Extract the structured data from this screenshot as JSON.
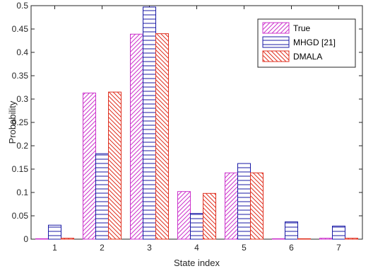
{
  "chart_data": {
    "type": "bar",
    "xlabel": "State index",
    "ylabel": "Probability",
    "categories": [
      "1",
      "2",
      "3",
      "4",
      "5",
      "6",
      "7"
    ],
    "ylim": [
      0,
      0.5
    ],
    "yticks": [
      "0",
      "0.05",
      "0.1",
      "0.15",
      "0.2",
      "0.25",
      "0.3",
      "0.35",
      "0.4",
      "0.45",
      "0.5"
    ],
    "ytick_values": [
      0,
      0.05,
      0.1,
      0.15,
      0.2,
      0.25,
      0.3,
      0.35,
      0.4,
      0.45,
      0.5
    ],
    "grid": false,
    "legend_position": "top-right",
    "series": [
      {
        "name": "True",
        "color": "#cc33cc",
        "hatch": "diagonal-forward",
        "values": [
          0.001,
          0.313,
          0.439,
          0.102,
          0.142,
          0.001,
          0.002
        ]
      },
      {
        "name": "MHGD [21]",
        "color": "#1a1aa6",
        "hatch": "horizontal",
        "values": [
          0.03,
          0.183,
          0.497,
          0.055,
          0.162,
          0.037,
          0.028
        ]
      },
      {
        "name": "DMALA",
        "color": "#e03020",
        "hatch": "diagonal-backward",
        "values": [
          0.002,
          0.315,
          0.44,
          0.098,
          0.142,
          0.001,
          0.002
        ]
      }
    ]
  }
}
